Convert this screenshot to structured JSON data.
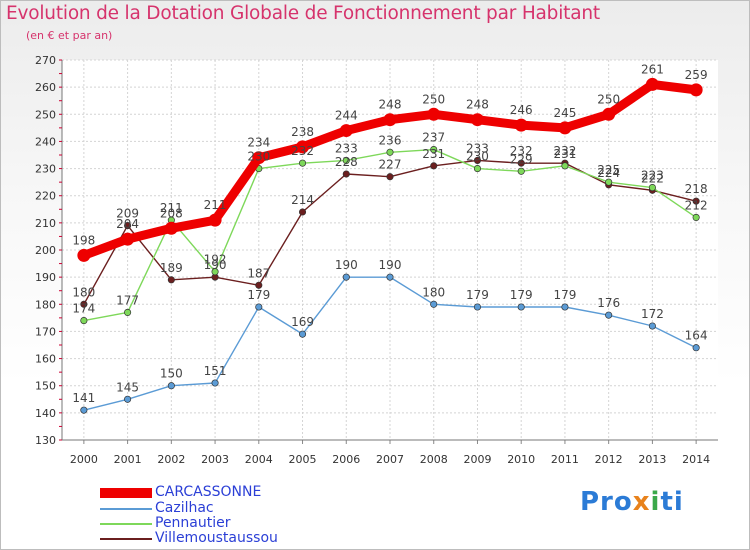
{
  "title": "Evolution de la Dotation Globale de Fonctionnement par Habitant",
  "subtitle": "(en € et par an)",
  "logo": {
    "text": "Proxiti",
    "parts": [
      "Pro",
      "x",
      "i",
      "ti"
    ]
  },
  "chart_data": {
    "type": "line",
    "title": "Evolution de la Dotation Globale de Fonctionnement par Habitant",
    "subtitle": "(en € et par an)",
    "xlabel": "",
    "ylabel": "",
    "x": [
      2000,
      2001,
      2002,
      2003,
      2004,
      2005,
      2006,
      2007,
      2008,
      2009,
      2010,
      2011,
      2012,
      2013,
      2014
    ],
    "ylim": [
      130,
      270
    ],
    "yticks": [
      130,
      140,
      150,
      160,
      170,
      180,
      190,
      200,
      210,
      220,
      230,
      240,
      250,
      260,
      270
    ],
    "grid": true,
    "legend_position": "bottom-left",
    "series": [
      {
        "name": "Villemoustaussou",
        "color": "#6b1f1f",
        "emphasis": false,
        "values": [
          180,
          209,
          189,
          190,
          187,
          214,
          228,
          227,
          231,
          233,
          232,
          232,
          224,
          222,
          218
        ]
      },
      {
        "name": "Pennautier",
        "color": "#7ed85a",
        "emphasis": false,
        "values": [
          174,
          177,
          211,
          192,
          230,
          232,
          233,
          236,
          237,
          230,
          229,
          231,
          225,
          223,
          212
        ]
      },
      {
        "name": "Cazilhac",
        "color": "#5b9bd5",
        "emphasis": false,
        "values": [
          141,
          145,
          150,
          151,
          179,
          169,
          190,
          190,
          180,
          179,
          179,
          179,
          176,
          172,
          164
        ]
      },
      {
        "name": "CARCASSONNE",
        "color": "#ee0000",
        "emphasis": true,
        "values": [
          198,
          204,
          208,
          211,
          234,
          238,
          244,
          248,
          250,
          248,
          246,
          245,
          250,
          261,
          259
        ]
      }
    ]
  },
  "legend": [
    {
      "label": "CARCASSONNE",
      "color": "#ee0000",
      "thick": true
    },
    {
      "label": "Cazilhac",
      "color": "#5b9bd5",
      "thick": false
    },
    {
      "label": "Pennautier",
      "color": "#7ed85a",
      "thick": false
    },
    {
      "label": "Villemoustaussou",
      "color": "#6b1f1f",
      "thick": false
    }
  ]
}
